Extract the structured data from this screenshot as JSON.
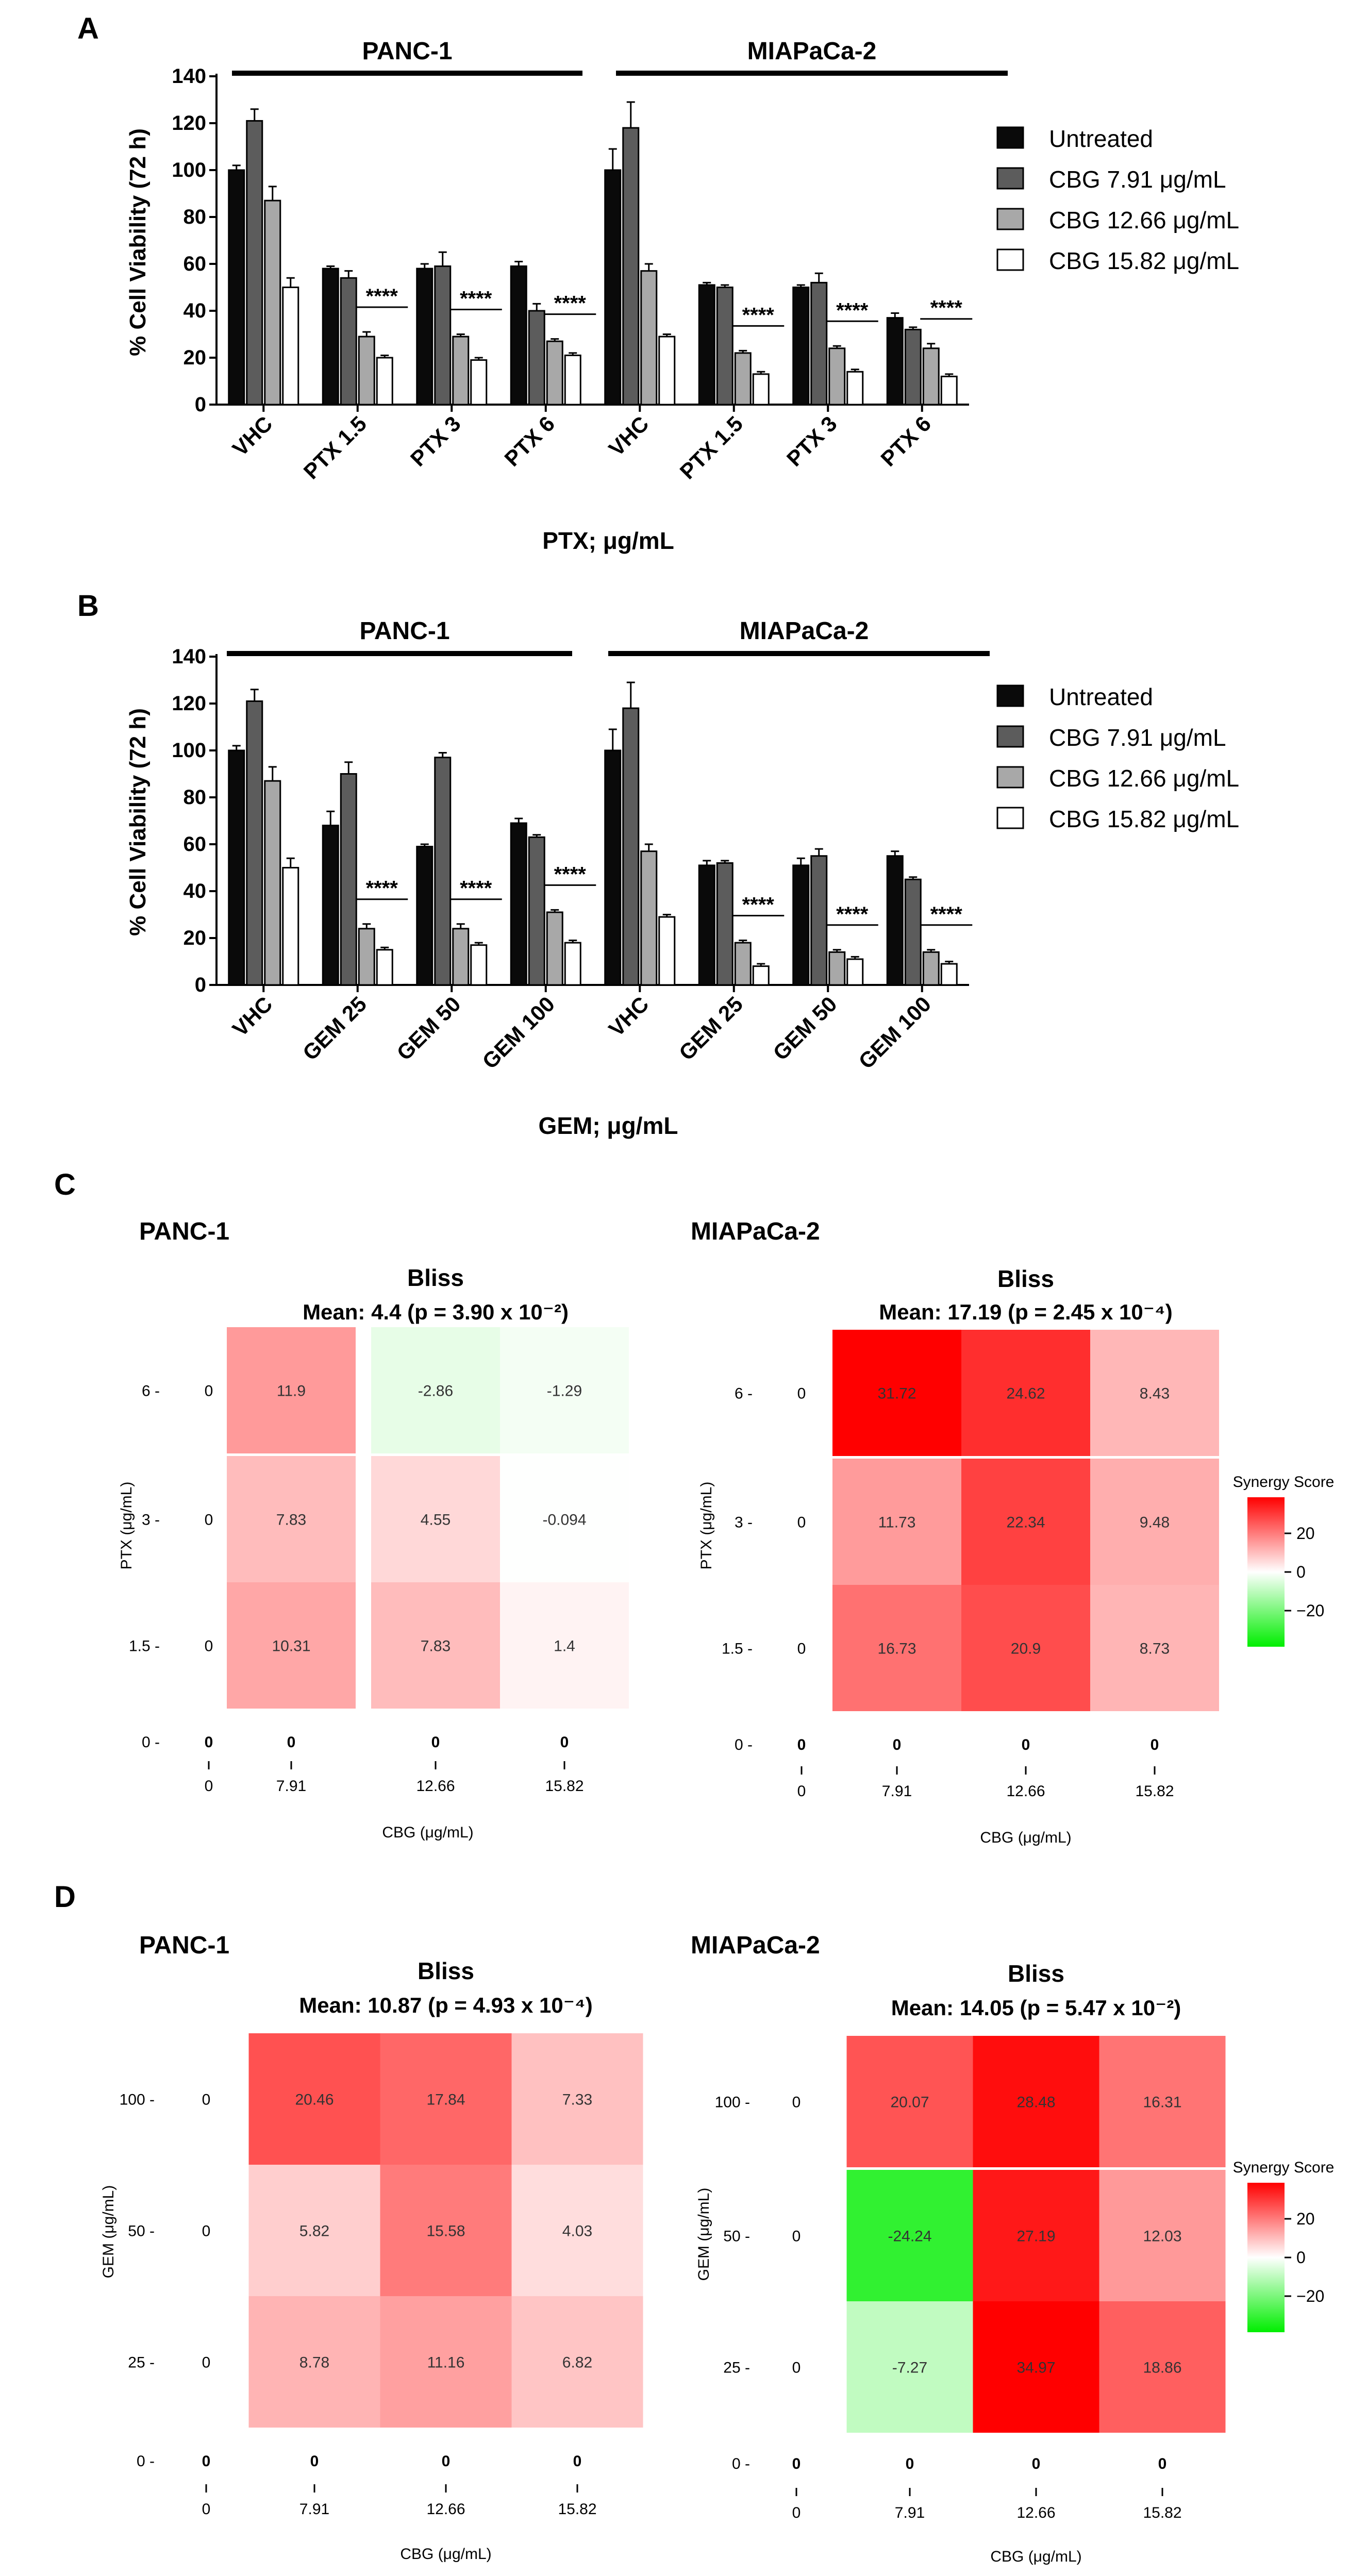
{
  "panels": {
    "A": {
      "letter": "A",
      "groups": [
        "PANC-1",
        "MIAPaCa-2"
      ],
      "ylabel": "% Cell Viability (72 h)",
      "xlabel": "PTX; μg/mL",
      "yticks": [
        "0",
        "20",
        "40",
        "60",
        "80",
        "100",
        "120",
        "140"
      ],
      "significance": "****"
    },
    "B": {
      "letter": "B",
      "groups": [
        "PANC-1",
        "MIAPaCa-2"
      ],
      "ylabel": "% Cell Viability (72 h)",
      "xlabel": "GEM; μg/mL",
      "yticks": [
        "0",
        "20",
        "40",
        "60",
        "80",
        "100",
        "120",
        "140"
      ],
      "significance": "****"
    },
    "C": {
      "letter": "C"
    },
    "D": {
      "letter": "D"
    }
  },
  "legend": [
    "Untreated",
    "CBG 7.91 μg/mL",
    "CBG 12.66 μg/mL",
    "CBG 15.82 μg/mL"
  ],
  "colors": {
    "series": [
      "#0a0a0a",
      "#5c5c5c",
      "#a8a8a8",
      "#ffffff"
    ],
    "positive": "#ff0000",
    "negative": "#00ee00"
  },
  "colorbar": {
    "title": "Synergy Score",
    "ticks": [
      "20",
      "0",
      "−20"
    ]
  },
  "chart_data": [
    {
      "type": "bar",
      "id": "A",
      "title": "",
      "ylabel": "% Cell Viability (72 h)",
      "xlabel": "PTX; μg/mL",
      "ylim": [
        0,
        140
      ],
      "categories": [
        "VHC",
        "PTX 1.5",
        "PTX 3",
        "PTX 6",
        "VHC",
        "PTX 1.5",
        "PTX 3",
        "PTX 6"
      ],
      "series": [
        {
          "name": "Untreated",
          "values": [
            100,
            58,
            58,
            59,
            100,
            51,
            50,
            37
          ],
          "errors": [
            2,
            1,
            2,
            2,
            9,
            1,
            1,
            2
          ]
        },
        {
          "name": "CBG 7.91 μg/mL",
          "values": [
            121,
            54,
            59,
            40,
            118,
            50,
            52,
            32
          ],
          "errors": [
            5,
            3,
            6,
            3,
            11,
            1,
            4,
            1
          ]
        },
        {
          "name": "CBG 12.66 μg/mL",
          "values": [
            87,
            29,
            29,
            27,
            57,
            22,
            24,
            24
          ],
          "errors": [
            6,
            2,
            1,
            1,
            3,
            1,
            1,
            2
          ]
        },
        {
          "name": "CBG 15.82 μg/mL",
          "values": [
            50,
            20,
            19,
            21,
            29,
            13,
            14,
            12
          ],
          "errors": [
            4,
            1,
            1,
            1,
            1,
            1,
            1,
            1
          ]
        }
      ],
      "significance_groups": [
        1,
        2,
        3,
        5,
        6,
        7
      ],
      "significance_label": "****"
    },
    {
      "type": "bar",
      "id": "B",
      "title": "",
      "ylabel": "% Cell Viability (72 h)",
      "xlabel": "GEM; μg/mL",
      "ylim": [
        0,
        140
      ],
      "categories": [
        "VHC",
        "GEM 25",
        "GEM 50",
        "GEM 100",
        "VHC",
        "GEM 25",
        "GEM 50",
        "GEM 100"
      ],
      "series": [
        {
          "name": "Untreated",
          "values": [
            100,
            68,
            59,
            69,
            100,
            51,
            51,
            55
          ],
          "errors": [
            2,
            6,
            1,
            2,
            9,
            2,
            3,
            2
          ]
        },
        {
          "name": "CBG 7.91 μg/mL",
          "values": [
            121,
            90,
            97,
            63,
            118,
            52,
            55,
            45
          ],
          "errors": [
            5,
            5,
            2,
            1,
            11,
            1,
            3,
            1
          ]
        },
        {
          "name": "CBG 12.66 μg/mL",
          "values": [
            87,
            24,
            24,
            31,
            57,
            18,
            14,
            14
          ],
          "errors": [
            6,
            2,
            2,
            1,
            3,
            1,
            1,
            1
          ]
        },
        {
          "name": "CBG 15.82 μg/mL",
          "values": [
            50,
            15,
            17,
            18,
            29,
            8,
            11,
            9
          ],
          "errors": [
            4,
            1,
            1,
            1,
            1,
            1,
            1,
            1
          ]
        }
      ],
      "significance_groups": [
        1,
        2,
        3,
        5,
        6,
        7
      ],
      "significance_label": "****"
    },
    {
      "type": "heatmap",
      "id": "C-PANC-1",
      "cell_line": "PANC-1",
      "title": "Bliss",
      "mean_text": "Mean: 4.4 (p = 3.90 x 10⁻²)",
      "ylabel": "PTX (μg/mL)",
      "xlabel": "CBG (μg/mL)",
      "x": [
        "0",
        "7.91",
        "12.66",
        "15.82"
      ],
      "y": [
        "0",
        "1.5",
        "3",
        "6"
      ],
      "values": [
        [
          0,
          0,
          0,
          0
        ],
        [
          0,
          10.31,
          7.83,
          1.4
        ],
        [
          0,
          7.83,
          4.55,
          -0.094
        ],
        [
          0,
          11.9,
          -2.86,
          -1.29
        ]
      ],
      "labels": [
        [
          "0",
          "0",
          "0",
          "0"
        ],
        [
          "0",
          "10.31",
          "7.83",
          "1.4"
        ],
        [
          "0",
          "7.83",
          "4.55",
          "-0.094"
        ],
        [
          "0",
          "11.9",
          "-2.86",
          "-1.29"
        ]
      ]
    },
    {
      "type": "heatmap",
      "id": "C-MIAPaCa-2",
      "cell_line": "MIAPaCa-2",
      "title": "Bliss",
      "mean_text": "Mean: 17.19 (p = 2.45 x 10⁻⁴)",
      "ylabel": "PTX (μg/mL)",
      "xlabel": "CBG (μg/mL)",
      "x": [
        "0",
        "7.91",
        "12.66",
        "15.82"
      ],
      "y": [
        "0",
        "1.5",
        "3",
        "6"
      ],
      "values": [
        [
          0,
          0,
          0,
          0
        ],
        [
          0,
          16.73,
          20.9,
          8.73
        ],
        [
          0,
          11.73,
          22.34,
          9.48
        ],
        [
          0,
          31.72,
          24.62,
          8.43
        ]
      ],
      "labels": [
        [
          "0",
          "0",
          "0",
          "0"
        ],
        [
          "0",
          "16.73",
          "20.9",
          "8.73"
        ],
        [
          "0",
          "11.73",
          "22.34",
          "9.48"
        ],
        [
          "0",
          "31.72",
          "24.62",
          "8.43"
        ]
      ]
    },
    {
      "type": "heatmap",
      "id": "D-PANC-1",
      "cell_line": "PANC-1",
      "title": "Bliss",
      "mean_text": "Mean: 10.87 (p = 4.93 x 10⁻⁴)",
      "ylabel": "GEM (μg/mL)",
      "xlabel": "CBG (μg/mL)",
      "x": [
        "0",
        "7.91",
        "12.66",
        "15.82"
      ],
      "y": [
        "0",
        "25",
        "50",
        "100"
      ],
      "values": [
        [
          0,
          0,
          0,
          0
        ],
        [
          0,
          8.78,
          11.16,
          6.82
        ],
        [
          0,
          5.82,
          15.58,
          4.03
        ],
        [
          0,
          20.46,
          17.84,
          7.33
        ]
      ],
      "labels": [
        [
          "0",
          "0",
          "0",
          "0"
        ],
        [
          "0",
          "8.78",
          "11.16",
          "6.82"
        ],
        [
          "0",
          "5.82",
          "15.58",
          "4.03"
        ],
        [
          "0",
          "20.46",
          "17.84",
          "7.33"
        ]
      ]
    },
    {
      "type": "heatmap",
      "id": "D-MIAPaCa-2",
      "cell_line": "MIAPaCa-2",
      "title": "Bliss",
      "mean_text": "Mean: 14.05 (p = 5.47 x 10⁻²)",
      "ylabel": "GEM (μg/mL)",
      "xlabel": "CBG (μg/mL)",
      "x": [
        "0",
        "7.91",
        "12.66",
        "15.82"
      ],
      "y": [
        "0",
        "25",
        "50",
        "100"
      ],
      "values": [
        [
          0,
          0,
          0,
          0
        ],
        [
          0,
          -7.27,
          34.97,
          18.86
        ],
        [
          0,
          -24.24,
          27.19,
          12.03
        ],
        [
          0,
          20.07,
          28.48,
          16.31
        ]
      ],
      "labels": [
        [
          "0",
          "0",
          "0",
          "0"
        ],
        [
          "0",
          "-7.27",
          "34.97",
          "18.86"
        ],
        [
          "0",
          "-24.24",
          "27.19",
          "12.03"
        ],
        [
          "0",
          "20.07",
          "28.48",
          "16.31"
        ]
      ]
    }
  ]
}
